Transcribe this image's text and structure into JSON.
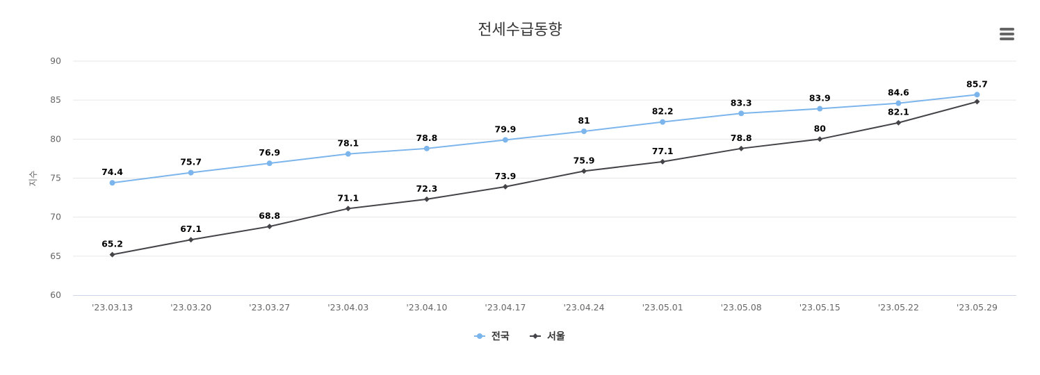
{
  "chart_data": {
    "type": "line",
    "title": "전세수급동향",
    "xlabel": "",
    "ylabel": "지수",
    "ylim": [
      60,
      90
    ],
    "yticks": [
      60,
      65,
      70,
      75,
      80,
      85,
      90
    ],
    "categories": [
      "'23.03.13",
      "'23.03.20",
      "'23.03.27",
      "'23.04.03",
      "'23.04.10",
      "'23.04.17",
      "'23.04.24",
      "'23.05.01",
      "'23.05.08",
      "'23.05.15",
      "'23.05.22",
      "'23.05.29"
    ],
    "grid": true,
    "legend_position": "bottom-center",
    "series": [
      {
        "name": "전국",
        "color": "#7cb5ec",
        "marker": "circle",
        "values": [
          74.4,
          75.7,
          76.9,
          78.1,
          78.8,
          79.9,
          81,
          82.2,
          83.3,
          83.9,
          84.6,
          85.7
        ]
      },
      {
        "name": "서울",
        "color": "#434348",
        "marker": "diamond",
        "values": [
          65.2,
          67.1,
          68.8,
          71.1,
          72.3,
          73.9,
          75.9,
          77.1,
          78.8,
          80,
          82.1,
          84.8
        ]
      }
    ]
  },
  "menu": {
    "icon": "hamburger-menu-icon"
  }
}
